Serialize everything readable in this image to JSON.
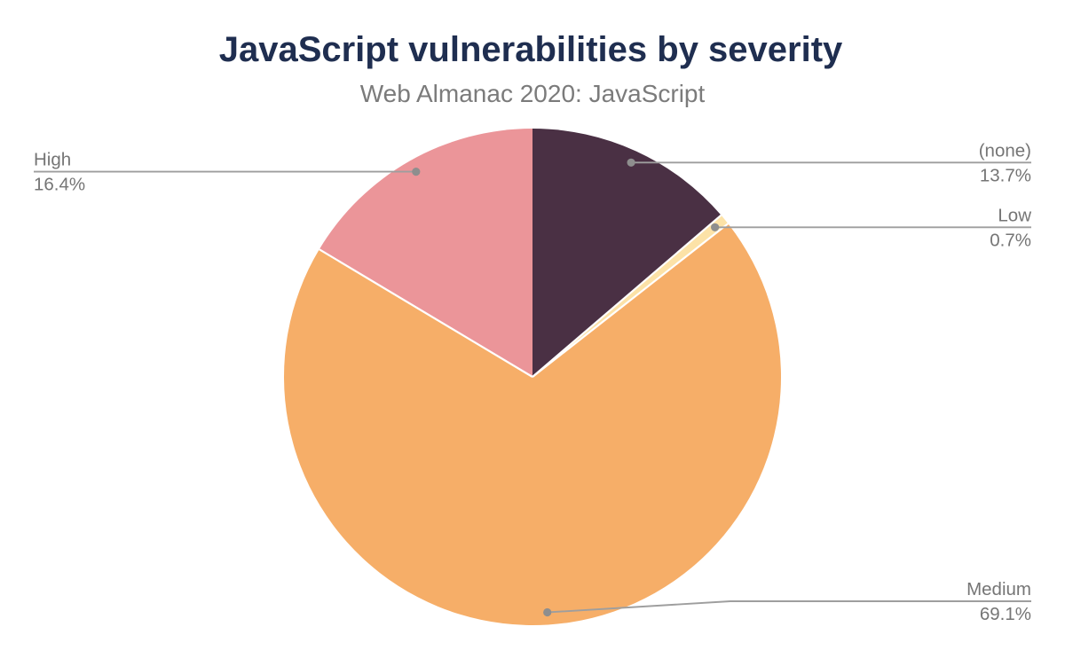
{
  "page": {
    "background": "#ffffff"
  },
  "chart_data": {
    "type": "pie",
    "title": "JavaScript vulnerabilities by severity",
    "subtitle": "Web Almanac 2020: JavaScript",
    "start_angle_deg": 0,
    "direction": "clockwise",
    "legend_position": "callout-labels",
    "slices": [
      {
        "label": "(none)",
        "value": 13.7,
        "display": "13.7%",
        "color": "#4A3044"
      },
      {
        "label": "Low",
        "value": 0.7,
        "display": "0.7%",
        "color": "#FCE2A7"
      },
      {
        "label": "Medium",
        "value": 69.1,
        "display": "69.1%",
        "color": "#F6AE68"
      },
      {
        "label": "High",
        "value": 16.4,
        "display": "16.4%",
        "color": "#EB9599"
      }
    ],
    "colors": {
      "title": "#1F2E50",
      "subtitle": "#7B7B7B",
      "label_text": "#757575",
      "callout_line": "#9E9E9E",
      "callout_dot": "#8E8E8E",
      "slice_separator": "#FFFFFF"
    }
  }
}
